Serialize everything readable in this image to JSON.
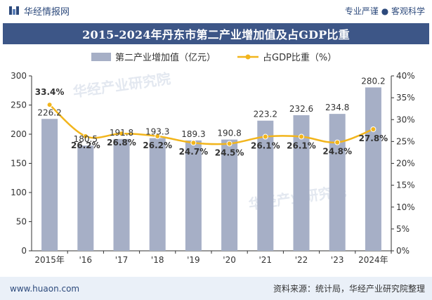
{
  "header": {
    "brand_name": "华经情报网",
    "tagline": "专业严谨 ● 客观科学"
  },
  "title": "2015-2024年丹东市第二产业增加值及占GDP比重",
  "footer": {
    "website": "www.huaon.com",
    "source": "资料来源：统计局，华经产业研究院整理"
  },
  "watermark": "华经产业研究院",
  "colors": {
    "bar": "#a6afc6",
    "line": "#f2b51c",
    "title_bg": "#3d5687",
    "brand": "#2d4a7c"
  },
  "chart_data": {
    "type": "bar+line",
    "categories": [
      "2015年",
      "'16",
      "'17",
      "'18",
      "'19",
      "'20",
      "'21",
      "'22",
      "'23",
      "2024年"
    ],
    "series": [
      {
        "name": "第二产业增加值（亿元）",
        "type": "bar",
        "axis": "left",
        "values": [
          226.2,
          180.5,
          191.8,
          193.3,
          189.3,
          190.8,
          223.2,
          232.6,
          234.8,
          280.2
        ],
        "labels": [
          "226.2",
          "180.5",
          "191.8",
          "193.3",
          "189.3",
          "190.8",
          "223.2",
          "232.6",
          "234.8",
          "280.2"
        ]
      },
      {
        "name": "占GDP比重（%）",
        "type": "line",
        "axis": "right",
        "values": [
          33.4,
          26.2,
          26.8,
          26.2,
          24.7,
          24.5,
          26.1,
          26.1,
          24.8,
          27.8
        ],
        "labels": [
          "33.4%",
          "26.2%",
          "26.8%",
          "26.2%",
          "24.7%",
          "24.5%",
          "26.1%",
          "26.1%",
          "24.8%",
          "27.8%"
        ]
      }
    ],
    "y_left": {
      "min": 0,
      "max": 300,
      "ticks": [
        "0",
        "50",
        "100",
        "150",
        "200",
        "250",
        "300"
      ]
    },
    "y_right": {
      "min": 0,
      "max": 40,
      "ticks": [
        "0%",
        "5%",
        "10%",
        "15%",
        "20%",
        "25%",
        "30%",
        "35%",
        "40%"
      ]
    },
    "legend_position": "top-center",
    "grid": false
  }
}
